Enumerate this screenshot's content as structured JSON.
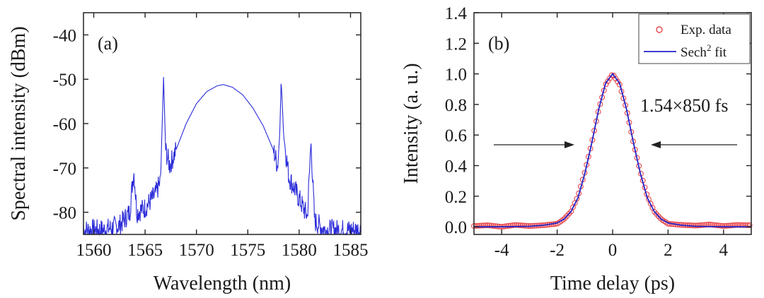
{
  "chart_data": [
    {
      "type": "line",
      "panel_label": "(a)",
      "xlabel": "Wavelength (nm)",
      "ylabel": "Spectral intensity (dBm)",
      "xlim": [
        1559,
        1586
      ],
      "ylim": [
        -85,
        -35
      ],
      "xticks": [
        1560,
        1565,
        1570,
        1575,
        1580,
        1585
      ],
      "xtick_labels": [
        "1560",
        "1565",
        "1570",
        "1575",
        "1580",
        "1585"
      ],
      "yticks": [
        -80,
        -70,
        -60,
        -50,
        -40
      ],
      "ytick_labels": [
        "-80",
        "-70",
        "-60",
        "-50",
        "-40"
      ],
      "color": "#2b2bd9",
      "grid": false,
      "series": [
        {
          "x": [
            1559.0,
            1561.0,
            1562.5,
            1563.5,
            1563.9,
            1564.2,
            1565.0,
            1566.0,
            1566.5,
            1566.8,
            1567.0,
            1567.4,
            1568.0,
            1569.0,
            1570.0,
            1571.0,
            1572.0,
            1572.6,
            1573.5,
            1574.5,
            1575.5,
            1576.5,
            1577.5,
            1577.9,
            1578.1,
            1578.25,
            1578.5,
            1579.0,
            1580.0,
            1580.8,
            1581.15,
            1581.5,
            1582.5,
            1584.0,
            1586.0
          ],
          "y": [
            -84,
            -84,
            -83,
            -80,
            -70.5,
            -80,
            -79,
            -76,
            -73,
            -49.5,
            -66,
            -69.5,
            -66,
            -60,
            -55.5,
            -52.8,
            -51.5,
            -51.2,
            -51.8,
            -53.5,
            -56.5,
            -60.5,
            -66,
            -69.5,
            -63,
            -50.2,
            -63,
            -72,
            -77,
            -81,
            -64,
            -82,
            -84,
            -84,
            -84
          ]
        }
      ]
    },
    {
      "type": "scatter",
      "panel_label": "(b)",
      "xlabel": "Time delay (ps)",
      "ylabel": "Intensity (a. u.)",
      "xlim": [
        -5,
        5
      ],
      "ylim": [
        -0.05,
        1.4
      ],
      "xticks": [
        -4,
        -2,
        0,
        2,
        4
      ],
      "xtick_labels": [
        "-4",
        "-2",
        "0",
        "2",
        "4"
      ],
      "yticks": [
        0.0,
        0.2,
        0.4,
        0.6,
        0.8,
        1.0,
        1.2,
        1.4
      ],
      "ytick_labels": [
        "0.0",
        "0.2",
        "0.4",
        "0.6",
        "0.8",
        "1.0",
        "1.2",
        "1.4"
      ],
      "annotation": "1.54×850 fs",
      "legend_position": "top-right",
      "grid": false,
      "series": [
        {
          "name": "Exp. data",
          "marker": "circle",
          "color": "#e8454a",
          "x": [
            -5.0,
            -4.5,
            -4.0,
            -3.5,
            -3.0,
            -2.5,
            -2.0,
            -1.75,
            -1.5,
            -1.25,
            -1.0,
            -0.75,
            -0.5,
            -0.25,
            0.0,
            0.25,
            0.5,
            0.75,
            1.0,
            1.25,
            1.5,
            1.75,
            2.0,
            2.5,
            3.0,
            3.5,
            4.0,
            4.5,
            5.0
          ],
          "y": [
            0.005,
            0.01,
            0.0,
            0.012,
            0.005,
            0.01,
            0.02,
            0.05,
            0.1,
            0.2,
            0.36,
            0.55,
            0.77,
            0.93,
            1.0,
            0.93,
            0.77,
            0.55,
            0.36,
            0.2,
            0.1,
            0.05,
            0.02,
            0.012,
            0.008,
            0.015,
            0.005,
            0.012,
            0.01
          ]
        },
        {
          "name": "Sech² fit",
          "legend_label_main": "Sech",
          "legend_label_sup": "2",
          "legend_label_tail": " fit",
          "marker": "line",
          "color": "#2323c8",
          "x": [
            -5.0,
            -4.0,
            -3.0,
            -2.5,
            -2.0,
            -1.75,
            -1.5,
            -1.25,
            -1.0,
            -0.75,
            -0.5,
            -0.25,
            0.0,
            0.25,
            0.5,
            0.75,
            1.0,
            1.25,
            1.5,
            1.75,
            2.0,
            2.5,
            3.0,
            4.0,
            5.0
          ],
          "y": [
            0.0,
            0.0,
            0.003,
            0.01,
            0.025,
            0.05,
            0.1,
            0.19,
            0.35,
            0.55,
            0.77,
            0.94,
            1.0,
            0.94,
            0.77,
            0.55,
            0.35,
            0.19,
            0.1,
            0.05,
            0.025,
            0.01,
            0.003,
            0.0,
            0.0
          ]
        }
      ]
    }
  ]
}
